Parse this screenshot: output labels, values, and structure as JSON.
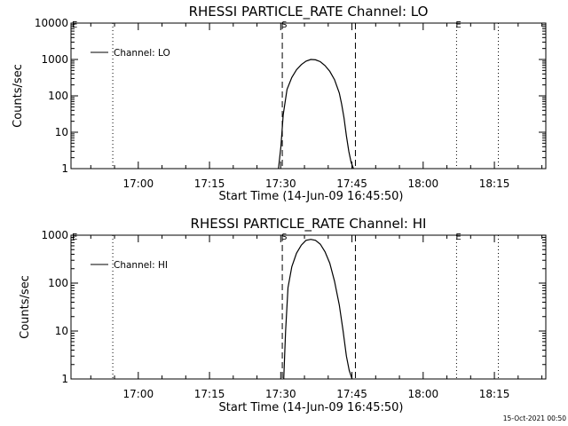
{
  "chart_data": [
    {
      "type": "line",
      "title": "RHESSI PARTICLE_RATE Channel: LO",
      "xlabel": "Start Time (14-Jun-09 16:45:50)",
      "ylabel": "Counts/sec",
      "yscale": "log",
      "ylim": [
        1,
        10000
      ],
      "xlim_minutes": [
        0,
        100
      ],
      "x_ticks": [
        {
          "minute": 14.17,
          "label": "17:00"
        },
        {
          "minute": 29.17,
          "label": "17:15"
        },
        {
          "minute": 44.17,
          "label": "17:30"
        },
        {
          "minute": 59.17,
          "label": "17:45"
        },
        {
          "minute": 74.17,
          "label": "18:00"
        },
        {
          "minute": 89.17,
          "label": "18:15"
        }
      ],
      "y_ticks": [
        {
          "value": 1,
          "label": "1"
        },
        {
          "value": 10,
          "label": "10"
        },
        {
          "value": 100,
          "label": "100"
        },
        {
          "value": 1000,
          "label": "1000"
        },
        {
          "value": 10000,
          "label": "10000"
        }
      ],
      "legend": {
        "label": "Channel: LO",
        "location": "top-left"
      },
      "series": [
        {
          "name": "Channel: LO",
          "x_minutes": [
            43.7,
            44.2,
            44.7,
            45.5,
            46.5,
            47.5,
            48.5,
            49.5,
            50.5,
            51.5,
            52.5,
            53.5,
            54.5,
            55.5,
            56.5,
            57.0,
            57.5,
            58.0,
            58.5,
            59.0,
            59.5
          ],
          "values": [
            1,
            4,
            30,
            150,
            320,
            520,
            720,
            900,
            1000,
            980,
            870,
            680,
            470,
            280,
            120,
            60,
            25,
            8,
            3,
            1.5,
            1
          ]
        }
      ],
      "markers": [
        {
          "minute": 44.5,
          "style": "dashed",
          "label": "S"
        },
        {
          "minute": 59.9,
          "style": "dashed",
          "label": ""
        },
        {
          "minute": 8.8,
          "style": "dotted",
          "label": ""
        },
        {
          "minute": 81.2,
          "style": "dotted",
          "label": "E"
        },
        {
          "minute": 90.0,
          "style": "dotted",
          "label": ""
        }
      ],
      "corner_marker_label": "E"
    },
    {
      "type": "line",
      "title": "RHESSI PARTICLE_RATE Channel: HI",
      "xlabel": "Start Time (14-Jun-09 16:45:50)",
      "ylabel": "Counts/sec",
      "yscale": "log",
      "ylim": [
        1,
        1000
      ],
      "xlim_minutes": [
        0,
        100
      ],
      "x_ticks": [
        {
          "minute": 14.17,
          "label": "17:00"
        },
        {
          "minute": 29.17,
          "label": "17:15"
        },
        {
          "minute": 44.17,
          "label": "17:30"
        },
        {
          "minute": 59.17,
          "label": "17:45"
        },
        {
          "minute": 74.17,
          "label": "18:00"
        },
        {
          "minute": 89.17,
          "label": "18:15"
        }
      ],
      "y_ticks": [
        {
          "value": 1,
          "label": "1"
        },
        {
          "value": 10,
          "label": "10"
        },
        {
          "value": 100,
          "label": "100"
        },
        {
          "value": 1000,
          "label": "1000"
        }
      ],
      "legend": {
        "label": "Channel: HI",
        "location": "top-left"
      },
      "series": [
        {
          "name": "Channel: HI",
          "x_minutes": [
            44.8,
            45.2,
            45.7,
            46.5,
            47.5,
            48.5,
            49.5,
            50.5,
            51.5,
            52.5,
            53.5,
            54.5,
            55.5,
            56.5,
            57.3,
            58.0,
            58.6,
            59.2
          ],
          "values": [
            1,
            10,
            80,
            220,
            420,
            620,
            780,
            820,
            780,
            650,
            450,
            260,
            110,
            35,
            10,
            3,
            1.5,
            1
          ]
        }
      ],
      "markers": [
        {
          "minute": 44.5,
          "style": "dashed",
          "label": "S"
        },
        {
          "minute": 59.9,
          "style": "dashed",
          "label": ""
        },
        {
          "minute": 8.8,
          "style": "dotted",
          "label": ""
        },
        {
          "minute": 81.2,
          "style": "dotted",
          "label": "E"
        },
        {
          "minute": 90.0,
          "style": "dotted",
          "label": ""
        }
      ],
      "corner_marker_label": "E"
    }
  ],
  "footer_timestamp": "15-Oct-2021 00:50"
}
